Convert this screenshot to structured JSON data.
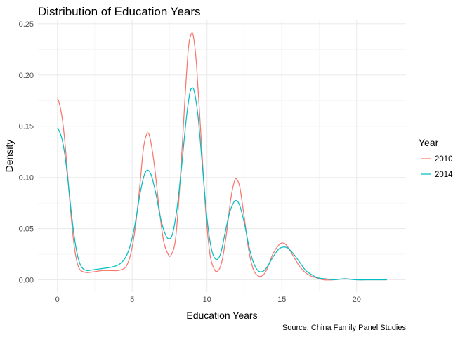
{
  "chart_data": {
    "type": "line",
    "title": "Distribution of Education Years",
    "xlabel": "Education Years",
    "ylabel": "Density",
    "caption": "Source: China Family Panel Studies",
    "xlim": [
      -1.3,
      23.3
    ],
    "ylim": [
      -0.012,
      0.254
    ],
    "x_ticks": [
      0,
      5,
      10,
      15,
      20
    ],
    "x_tick_labels": [
      "0",
      "5",
      "10",
      "15",
      "20"
    ],
    "y_ticks": [
      0.0,
      0.05,
      0.1,
      0.15,
      0.2,
      0.25
    ],
    "y_tick_labels": [
      "0.00",
      "0.05",
      "0.10",
      "0.15",
      "0.20",
      "0.25"
    ],
    "grid": true,
    "legend": {
      "title": "Year",
      "position": "right"
    },
    "series": [
      {
        "name": "2010",
        "color": "#F8766D",
        "points": [
          [
            0,
            0.176
          ],
          [
            0.1,
            0.174
          ],
          [
            0.3,
            0.16
          ],
          [
            0.5,
            0.135
          ],
          [
            0.7,
            0.1
          ],
          [
            0.9,
            0.065
          ],
          [
            1.1,
            0.036
          ],
          [
            1.3,
            0.018
          ],
          [
            1.5,
            0.01
          ],
          [
            1.7,
            0.008
          ],
          [
            2.0,
            0.007
          ],
          [
            2.5,
            0.008
          ],
          [
            3.0,
            0.009
          ],
          [
            3.5,
            0.009
          ],
          [
            4.0,
            0.009
          ],
          [
            4.3,
            0.01
          ],
          [
            4.6,
            0.013
          ],
          [
            4.9,
            0.025
          ],
          [
            5.2,
            0.05
          ],
          [
            5.5,
            0.09
          ],
          [
            5.75,
            0.128
          ],
          [
            6.0,
            0.143
          ],
          [
            6.2,
            0.138
          ],
          [
            6.5,
            0.11
          ],
          [
            6.8,
            0.07
          ],
          [
            7.1,
            0.038
          ],
          [
            7.4,
            0.025
          ],
          [
            7.6,
            0.024
          ],
          [
            7.9,
            0.04
          ],
          [
            8.2,
            0.095
          ],
          [
            8.5,
            0.17
          ],
          [
            8.75,
            0.225
          ],
          [
            8.95,
            0.24
          ],
          [
            9.1,
            0.237
          ],
          [
            9.3,
            0.21
          ],
          [
            9.6,
            0.14
          ],
          [
            9.9,
            0.07
          ],
          [
            10.2,
            0.025
          ],
          [
            10.5,
            0.01
          ],
          [
            10.75,
            0.009
          ],
          [
            11.0,
            0.018
          ],
          [
            11.3,
            0.045
          ],
          [
            11.6,
            0.08
          ],
          [
            11.85,
            0.097
          ],
          [
            12.0,
            0.098
          ],
          [
            12.2,
            0.09
          ],
          [
            12.5,
            0.06
          ],
          [
            12.8,
            0.028
          ],
          [
            13.1,
            0.01
          ],
          [
            13.4,
            0.004
          ],
          [
            13.7,
            0.004
          ],
          [
            14.0,
            0.01
          ],
          [
            14.4,
            0.025
          ],
          [
            14.8,
            0.034
          ],
          [
            15.05,
            0.036
          ],
          [
            15.3,
            0.034
          ],
          [
            15.7,
            0.025
          ],
          [
            16.1,
            0.015
          ],
          [
            16.5,
            0.008
          ],
          [
            16.9,
            0.004
          ],
          [
            17.3,
            0.002
          ],
          [
            17.8,
            0.0
          ],
          [
            18.5,
            0.0
          ],
          [
            19.2,
            0.001
          ],
          [
            20.0,
            0.0
          ],
          [
            21.0,
            0.0
          ],
          [
            22.0,
            0.0
          ]
        ]
      },
      {
        "name": "2014",
        "color": "#00BFC4",
        "points": [
          [
            0,
            0.148
          ],
          [
            0.1,
            0.146
          ],
          [
            0.3,
            0.138
          ],
          [
            0.5,
            0.122
          ],
          [
            0.7,
            0.098
          ],
          [
            0.9,
            0.07
          ],
          [
            1.1,
            0.045
          ],
          [
            1.3,
            0.027
          ],
          [
            1.5,
            0.016
          ],
          [
            1.7,
            0.011
          ],
          [
            2.0,
            0.009
          ],
          [
            2.5,
            0.01
          ],
          [
            3.0,
            0.011
          ],
          [
            3.5,
            0.012
          ],
          [
            4.0,
            0.014
          ],
          [
            4.3,
            0.017
          ],
          [
            4.6,
            0.023
          ],
          [
            4.9,
            0.035
          ],
          [
            5.2,
            0.055
          ],
          [
            5.5,
            0.082
          ],
          [
            5.8,
            0.102
          ],
          [
            6.05,
            0.107
          ],
          [
            6.3,
            0.101
          ],
          [
            6.6,
            0.083
          ],
          [
            6.9,
            0.06
          ],
          [
            7.2,
            0.045
          ],
          [
            7.45,
            0.04
          ],
          [
            7.7,
            0.045
          ],
          [
            8.0,
            0.07
          ],
          [
            8.3,
            0.11
          ],
          [
            8.6,
            0.155
          ],
          [
            8.85,
            0.182
          ],
          [
            9.0,
            0.187
          ],
          [
            9.15,
            0.184
          ],
          [
            9.4,
            0.16
          ],
          [
            9.7,
            0.11
          ],
          [
            10.0,
            0.06
          ],
          [
            10.3,
            0.03
          ],
          [
            10.6,
            0.02
          ],
          [
            10.9,
            0.025
          ],
          [
            11.2,
            0.045
          ],
          [
            11.5,
            0.065
          ],
          [
            11.8,
            0.076
          ],
          [
            12.0,
            0.077
          ],
          [
            12.2,
            0.072
          ],
          [
            12.5,
            0.055
          ],
          [
            12.8,
            0.033
          ],
          [
            13.1,
            0.017
          ],
          [
            13.4,
            0.009
          ],
          [
            13.7,
            0.008
          ],
          [
            14.0,
            0.012
          ],
          [
            14.4,
            0.022
          ],
          [
            14.8,
            0.03
          ],
          [
            15.1,
            0.032
          ],
          [
            15.4,
            0.031
          ],
          [
            15.8,
            0.025
          ],
          [
            16.2,
            0.017
          ],
          [
            16.6,
            0.009
          ],
          [
            17.0,
            0.005
          ],
          [
            17.4,
            0.002
          ],
          [
            17.9,
            0.001
          ],
          [
            18.5,
            0.0
          ],
          [
            19.2,
            0.001
          ],
          [
            20.0,
            0.0
          ],
          [
            21.0,
            0.0
          ],
          [
            22.0,
            0.0
          ]
        ]
      }
    ]
  }
}
